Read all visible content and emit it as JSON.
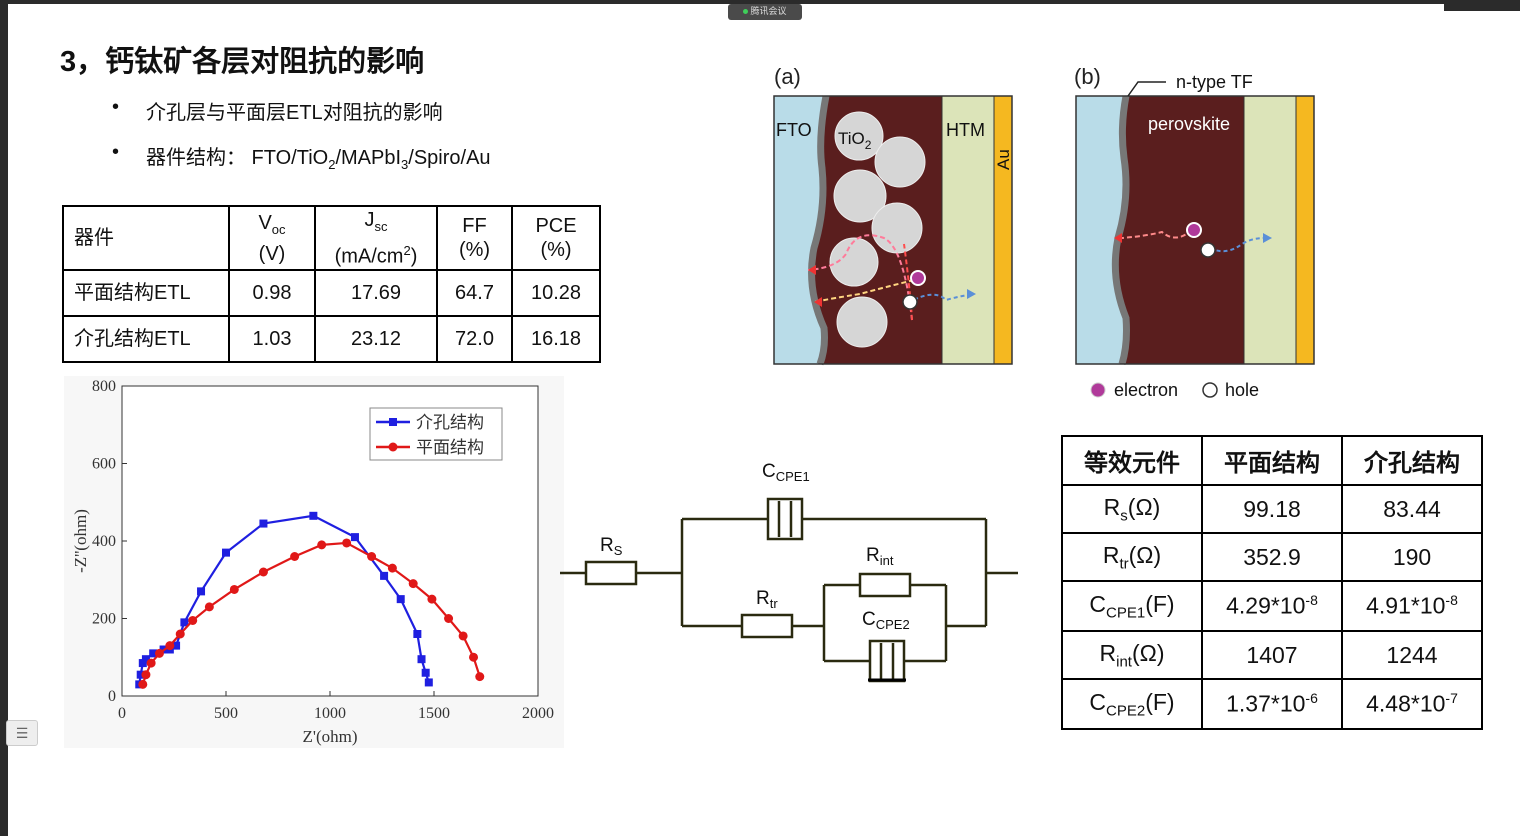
{
  "meeting_label": "腾讯会议",
  "title": "3，钙钛矿各层对阻抗的影响",
  "bullets": [
    {
      "symbol": "•",
      "text": "介孔层与平面层ETL对阻抗的影响"
    },
    {
      "symbol": "•",
      "prefix": "器件结构：  FTO/TiO",
      "sub1": "2",
      "mid": "/MAPbI",
      "sub2": "3",
      "suffix": "/Spiro/Au"
    }
  ],
  "perf_table": {
    "headers": [
      {
        "text": "器件"
      },
      {
        "main": "V",
        "sub": "oc",
        "unit": "(V)"
      },
      {
        "main": "J",
        "sub": "sc",
        "unit_pre": "(mA/cm",
        "unit_sup": "2",
        "unit_post": ")"
      },
      {
        "main": "FF",
        "unit": "(%)"
      },
      {
        "main": "PCE",
        "unit": "(%)"
      }
    ],
    "rows": [
      [
        "平面结构ETL",
        "0.98",
        "17.69",
        "64.7",
        "10.28"
      ],
      [
        "介孔结构ETL",
        "1.03",
        "23.12",
        "72.0",
        "16.18"
      ]
    ]
  },
  "chart_data": {
    "type": "scatter",
    "xlabel": "Z'(ohm)",
    "ylabel": "-Z''(ohm)",
    "xlim": [
      0,
      2000
    ],
    "ylim": [
      0,
      800
    ],
    "xticks": [
      "0",
      "500",
      "1000",
      "1500",
      "2000"
    ],
    "yticks": [
      "0",
      "200",
      "400",
      "600",
      "800"
    ],
    "legend_position": "top-right",
    "series": [
      {
        "name": "介孔结构",
        "color": "#1f1fe0",
        "marker": "square",
        "x": [
          83,
          90,
          100,
          115,
          150,
          200,
          230,
          260,
          300,
          380,
          500,
          680,
          920,
          1120,
          1260,
          1340,
          1420,
          1440,
          1460,
          1475
        ],
        "y": [
          30,
          55,
          85,
          95,
          110,
          120,
          120,
          130,
          190,
          270,
          370,
          445,
          465,
          410,
          310,
          250,
          160,
          95,
          60,
          35
        ]
      },
      {
        "name": "平面结构",
        "color": "#e01818",
        "marker": "circle",
        "x": [
          100,
          115,
          140,
          180,
          230,
          280,
          340,
          420,
          540,
          680,
          830,
          960,
          1080,
          1200,
          1300,
          1400,
          1490,
          1570,
          1640,
          1690,
          1720
        ],
        "y": [
          30,
          55,
          85,
          110,
          130,
          160,
          195,
          230,
          275,
          320,
          360,
          390,
          395,
          360,
          330,
          290,
          250,
          200,
          155,
          100,
          50
        ]
      }
    ]
  },
  "circuit": {
    "rs_main": "R",
    "rs_sub": "S",
    "cpe1_main": "C",
    "cpe1_sub": "CPE1",
    "rtr_main": "R",
    "rtr_sub": "tr",
    "rint_main": "R",
    "rint_sub": "int",
    "cpe2_main": "C",
    "cpe2_sub": "CPE2"
  },
  "diagram_a": {
    "label": "(a)",
    "fto": "FTO",
    "tio2_main": "TiO",
    "tio2_sub": "2",
    "htm": "HTM",
    "au": "Au",
    "colors": {
      "fto": "#b9dce8",
      "perovskite": "#5a1e1e",
      "htm": "#dce4b9",
      "au": "#f5b820",
      "electron": "#b03a9a"
    }
  },
  "diagram_b": {
    "label": "(b)",
    "ntype": "n-type TF",
    "perovskite": "perovskite",
    "legend_electron": "electron",
    "legend_hole": "hole"
  },
  "eq_table": {
    "headers": [
      "等效元件",
      "平面结构",
      "介孔结构"
    ],
    "rows": [
      {
        "main": "R",
        "sub": "s",
        "unit": "(Ω)",
        "planar": "99.18",
        "meso": "83.44"
      },
      {
        "main": "R",
        "sub": "tr",
        "unit": "(Ω)",
        "planar": "352.9",
        "meso": "190"
      },
      {
        "main": "C",
        "sub": "CPE1",
        "unit": "(F)",
        "planar_base": "4.29*10",
        "planar_exp": "-8",
        "meso_base": "4.91*10",
        "meso_exp": "-8"
      },
      {
        "main": "R",
        "sub": "int",
        "unit": "(Ω)",
        "planar": "1407",
        "meso": "1244"
      },
      {
        "main": "C",
        "sub": "CPE2",
        "unit": "(F)",
        "planar_base": "1.37*10",
        "planar_exp": "-6",
        "meso_base": "4.48*10",
        "meso_exp": "-7"
      }
    ]
  },
  "sidebar_icon": "list-icon"
}
